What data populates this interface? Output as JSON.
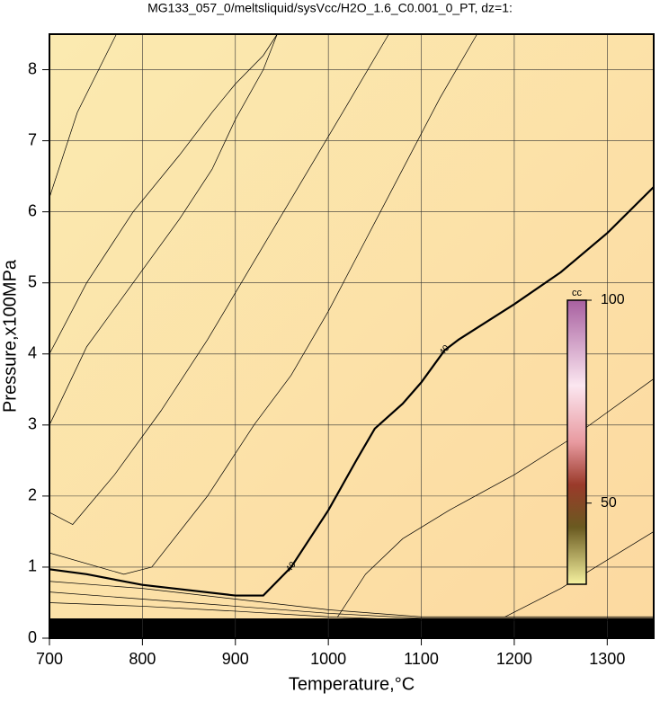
{
  "chart_data": {
    "type": "contour",
    "title": "MG133_057_0/meltsliquid/sysVcc/H2O_1.6_C0.001_0_PT, dz=1:",
    "x_label": "Temperature,°C",
    "y_label": "Pressure,x100MPa",
    "xlim": [
      700,
      1350
    ],
    "ylim": [
      0,
      8.5
    ],
    "xticks": [
      700,
      800,
      900,
      1000,
      1100,
      1200,
      1300
    ],
    "yticks": [
      0,
      1,
      2,
      3,
      4,
      5,
      6,
      7,
      8
    ],
    "grid": true,
    "colorbar": {
      "label": "cc",
      "lim": [
        30,
        100
      ],
      "ticks": [
        50,
        100
      ]
    },
    "contours": [
      {
        "level": 40,
        "x": [
          700,
          740,
          800,
          900,
          930,
          960,
          1000,
          1030,
          1050,
          1080,
          1100,
          1125,
          1140,
          1200,
          1250,
          1300,
          1350
        ],
        "y": [
          0.97,
          0.9,
          0.75,
          0.6,
          0.6,
          1.0,
          1.8,
          2.5,
          2.95,
          3.3,
          3.6,
          4.05,
          4.2,
          4.7,
          5.15,
          5.7,
          6.35
        ]
      },
      {
        "x": [
          700,
          730,
          772
        ],
        "y": [
          6.2,
          7.4,
          8.5
        ]
      },
      {
        "x": [
          700,
          740,
          790,
          840,
          875,
          900,
          930,
          945
        ],
        "y": [
          4.0,
          5.0,
          6.0,
          6.8,
          7.4,
          7.8,
          8.2,
          8.5
        ]
      },
      {
        "x": [
          700,
          740,
          790,
          840,
          875,
          900,
          930,
          945
        ],
        "y": [
          3.0,
          4.1,
          5.0,
          5.9,
          6.6,
          7.3,
          8.0,
          8.5
        ]
      },
      {
        "x": [
          700,
          725,
          770,
          820,
          870,
          920,
          970,
          1020,
          1065
        ],
        "y": [
          1.77,
          1.6,
          2.3,
          3.2,
          4.2,
          5.3,
          6.4,
          7.5,
          8.5
        ]
      },
      {
        "x": [
          700,
          780,
          810,
          870,
          920,
          960,
          1000,
          1040,
          1080,
          1120,
          1160
        ],
        "y": [
          1.2,
          0.9,
          1.0,
          2.0,
          3.0,
          3.7,
          4.6,
          5.6,
          6.6,
          7.6,
          8.5
        ]
      },
      {
        "x": [
          1010,
          1040,
          1080,
          1130,
          1200,
          1260,
          1350
        ],
        "y": [
          0.3,
          0.9,
          1.4,
          1.8,
          2.3,
          2.8,
          3.65
        ]
      },
      {
        "x": [
          1190,
          1250,
          1300,
          1350
        ],
        "y": [
          0.3,
          0.7,
          1.1,
          1.5
        ]
      },
      {
        "x": [
          700,
          800,
          900,
          1000,
          1100,
          1200,
          1350
        ],
        "y": [
          0.8,
          0.7,
          0.55,
          0.4,
          0.3,
          0.3,
          0.3
        ]
      },
      {
        "x": [
          700,
          800,
          900,
          1000,
          1100,
          1200,
          1350
        ],
        "y": [
          0.65,
          0.55,
          0.45,
          0.35,
          0.28,
          0.28,
          0.28
        ]
      },
      {
        "x": [
          700,
          800,
          900,
          1000,
          1100,
          1200,
          1350
        ],
        "y": [
          0.5,
          0.45,
          0.38,
          0.3,
          0.25,
          0.25,
          0.25
        ]
      }
    ]
  }
}
